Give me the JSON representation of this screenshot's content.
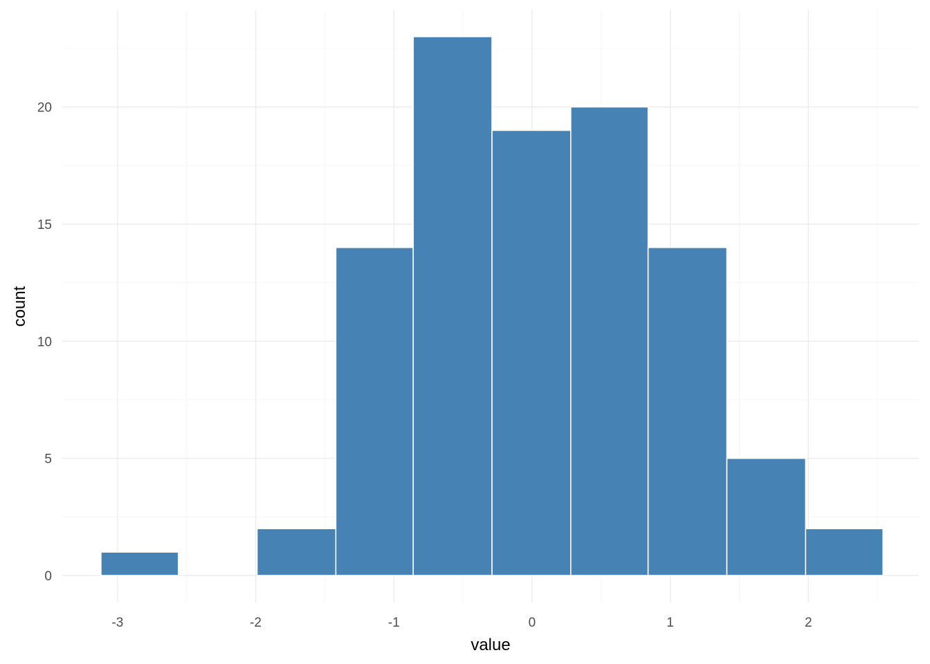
{
  "chart_data": {
    "type": "bar",
    "subtype": "histogram",
    "title": "",
    "xlabel": "value",
    "ylabel": "count",
    "bins": [
      {
        "x0": -3.12,
        "x1": -2.56,
        "count": 1
      },
      {
        "x0": -2.56,
        "x1": -1.99,
        "count": 0
      },
      {
        "x0": -1.99,
        "x1": -1.42,
        "count": 2
      },
      {
        "x0": -1.42,
        "x1": -0.86,
        "count": 14
      },
      {
        "x0": -0.86,
        "x1": -0.29,
        "count": 23
      },
      {
        "x0": -0.29,
        "x1": 0.28,
        "count": 19
      },
      {
        "x0": 0.28,
        "x1": 0.84,
        "count": 20
      },
      {
        "x0": 0.84,
        "x1": 1.41,
        "count": 14
      },
      {
        "x0": 1.41,
        "x1": 1.98,
        "count": 5
      },
      {
        "x0": 1.98,
        "x1": 2.54,
        "count": 2
      }
    ],
    "x_ticks": [
      -3,
      -2,
      -1,
      0,
      1,
      2
    ],
    "y_ticks": [
      0,
      5,
      10,
      15,
      20
    ],
    "xlim": [
      -3.4,
      2.8
    ],
    "ylim": [
      -1.15,
      24.15
    ],
    "grid": true,
    "legend": "none",
    "colors": {
      "bar_fill": "#4682b4",
      "bar_border": "#ffffff",
      "grid_major": "#ebebeb",
      "grid_minor": "#f3f3f3",
      "tick_text": "#4d4d4d",
      "axis_title": "#000000"
    }
  }
}
